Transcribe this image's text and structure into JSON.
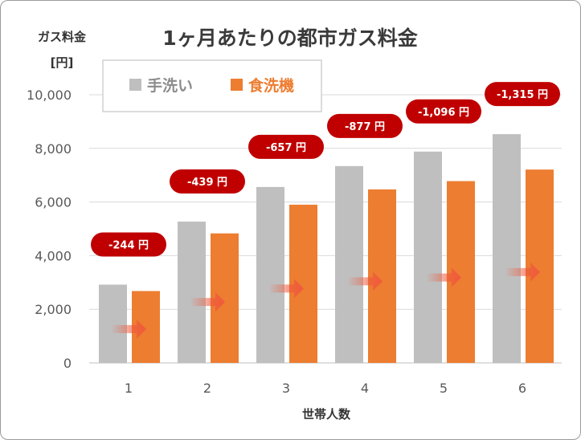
{
  "chart_data": {
    "type": "bar",
    "title": "1ヶ月あたりの都市ガス料金",
    "ylabel": "ガス料金",
    "yunit": "[円]",
    "xlabel": "世帯人数",
    "categories": [
      "1",
      "2",
      "3",
      "4",
      "5",
      "6"
    ],
    "ylim": [
      0,
      10000
    ],
    "yticks": [
      0,
      2000,
      4000,
      6000,
      8000,
      10000
    ],
    "ytick_labels": [
      "0",
      "2,000",
      "4,000",
      "6,000",
      "8,000",
      "10,000"
    ],
    "grid": true,
    "legend_position": "top-left",
    "series": [
      {
        "name": "手洗い",
        "color": "#bfbfbf",
        "values": [
          2920,
          5270,
          6560,
          7340,
          7880,
          8530
        ]
      },
      {
        "name": "食洗機",
        "color": "#ed7d31",
        "values": [
          2680,
          4830,
          5900,
          6470,
          6780,
          7210
        ]
      }
    ],
    "annotations": [
      "-244 円",
      "-439 円",
      "-657 円",
      "-877 円",
      "-1,096 円",
      "-1,315 円"
    ],
    "annotation_color": "#c00000",
    "arrow_color": "#ef5a3c"
  }
}
